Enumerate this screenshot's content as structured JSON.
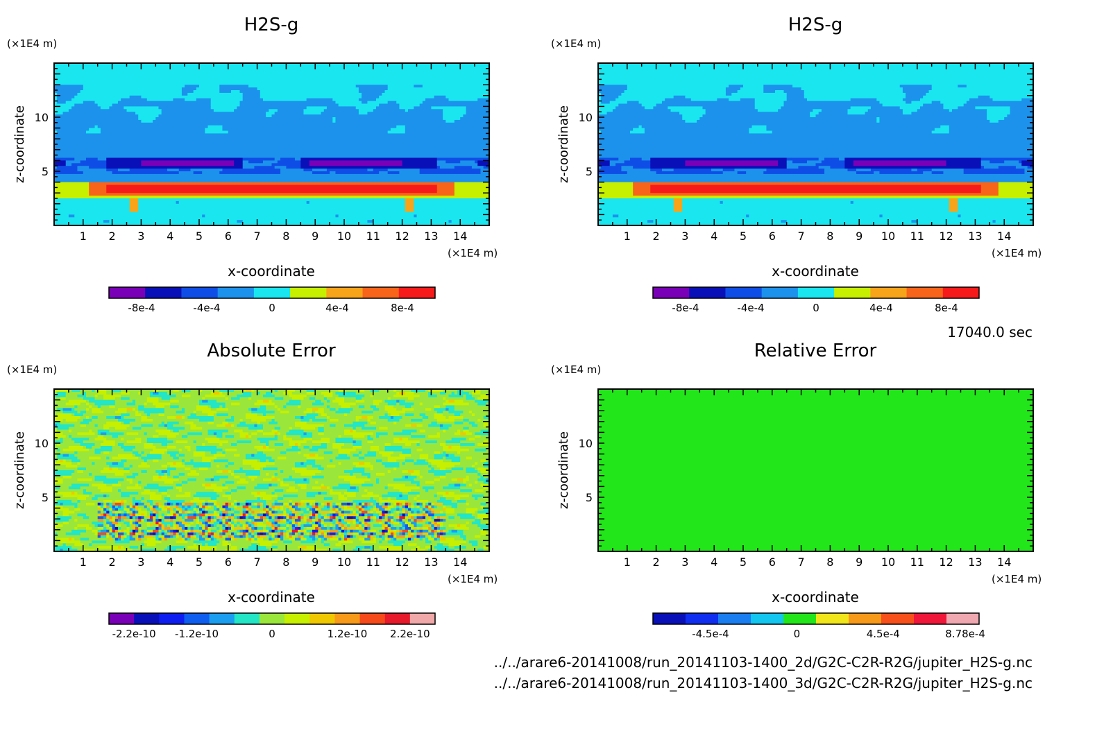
{
  "colors": {
    "field_levels": [
      "#7a00b8",
      "#0a10b8",
      "#0f4ee6",
      "#1c92ec",
      "#1ae6f0",
      "#c6f000",
      "#f7a41a",
      "#f7641a",
      "#f71a1a"
    ],
    "abs_error_levels": [
      "#7a00b8",
      "#0a10b8",
      "#0f1ef0",
      "#0f5ef0",
      "#1c9ef0",
      "#22e6c6",
      "#9ae63a",
      "#c6f000",
      "#f0c800",
      "#f79a1a",
      "#f74a1a",
      "#e61a2a",
      "#f0a8a8"
    ],
    "rel_error_levels": [
      "#0a10b8",
      "#0f2ef0",
      "#1a7ef0",
      "#12c6f0",
      "#22e61a",
      "#f0e61a",
      "#f79a1a",
      "#f7501a",
      "#f0163a",
      "#f0a8b0"
    ]
  },
  "timestamp": "17040.0 sec",
  "file_paths": [
    "../../arare6-20141008/run_20141103-1400_2d/G2C-C2R-R2G/jupiter_H2S-g.nc",
    "../../arare6-20141008/run_20141103-1400_3d/G2C-C2R-R2G/jupiter_H2S-g.nc"
  ],
  "panels": [
    {
      "title": "H2S-g",
      "xlabel": "x-coordinate",
      "ylabel": "z-coordinate",
      "x_unit": "(×1E4 m)",
      "y_unit": "(×1E4 m)",
      "xticks": [
        "1",
        "2",
        "3",
        "4",
        "5",
        "6",
        "7",
        "8",
        "9",
        "10",
        "11",
        "12",
        "13",
        "14"
      ],
      "yticks": [
        "5",
        "10"
      ],
      "colorbar_labels": [
        "-8e-4",
        "-4e-4",
        "0",
        "4e-4",
        "8e-4"
      ]
    },
    {
      "title": "H2S-g",
      "xlabel": "x-coordinate",
      "ylabel": "z-coordinate",
      "x_unit": "(×1E4 m)",
      "y_unit": "(×1E4 m)",
      "xticks": [
        "1",
        "2",
        "3",
        "4",
        "5",
        "6",
        "7",
        "8",
        "9",
        "10",
        "11",
        "12",
        "13",
        "14"
      ],
      "yticks": [
        "5",
        "10"
      ],
      "colorbar_labels": [
        "-8e-4",
        "-4e-4",
        "0",
        "4e-4",
        "8e-4"
      ]
    },
    {
      "title": "Absolute Error",
      "xlabel": "x-coordinate",
      "ylabel": "z-coordinate",
      "x_unit": "(×1E4 m)",
      "y_unit": "(×1E4 m)",
      "xticks": [
        "1",
        "2",
        "3",
        "4",
        "5",
        "6",
        "7",
        "8",
        "9",
        "10",
        "11",
        "12",
        "13",
        "14"
      ],
      "yticks": [
        "5",
        "10"
      ],
      "colorbar_labels": [
        "-2.2e-10",
        "-1.2e-10",
        "0",
        "1.2e-10",
        "2.2e-10"
      ]
    },
    {
      "title": "Relative Error",
      "xlabel": "x-coordinate",
      "ylabel": "z-coordinate",
      "x_unit": "(×1E4 m)",
      "y_unit": "(×1E4 m)",
      "xticks": [
        "1",
        "2",
        "3",
        "4",
        "5",
        "6",
        "7",
        "8",
        "9",
        "10",
        "11",
        "12",
        "13",
        "14"
      ],
      "yticks": [
        "5",
        "10"
      ],
      "colorbar_labels": [
        "-4.5e-4",
        "0",
        "4.5e-4",
        "8.78e-4"
      ]
    }
  ],
  "chart_data": [
    {
      "type": "heatmap",
      "title": "H2S-g",
      "xlabel": "x-coordinate",
      "ylabel": "z-coordinate",
      "xlim": [
        0,
        15
      ],
      "ylim": [
        0,
        15
      ],
      "colorbar": {
        "ticks": [
          -0.0008,
          -0.0004,
          0,
          0.0004,
          0.0008
        ],
        "range": [
          -0.001,
          0.001
        ],
        "levels": 9
      },
      "description_values": {
        "background": 0,
        "cyan_band_z": [
          6,
          12
        ],
        "blue_band_z": [
          5,
          6.5
        ],
        "purple_cores_x": [
          5.5,
          9.5
        ],
        "red_band_z": [
          2.5,
          4
        ],
        "red_band_peak": 0.0008
      }
    },
    {
      "type": "heatmap",
      "title": "H2S-g",
      "xlabel": "x-coordinate",
      "ylabel": "z-coordinate",
      "xlim": [
        0,
        15
      ],
      "ylim": [
        0,
        15
      ],
      "colorbar": {
        "ticks": [
          -0.0008,
          -0.0004,
          0,
          0.0004,
          0.0008
        ],
        "range": [
          -0.001,
          0.001
        ],
        "levels": 9
      }
    },
    {
      "type": "heatmap",
      "title": "Absolute Error",
      "xlabel": "x-coordinate",
      "ylabel": "z-coordinate",
      "xlim": [
        0,
        15
      ],
      "ylim": [
        0,
        15
      ],
      "colorbar": {
        "ticks": [
          -2.2e-10,
          -1.2e-10,
          0,
          1.2e-10,
          2.2e-10
        ],
        "range": [
          -2.6e-10,
          2.6e-10
        ],
        "levels": 13
      }
    },
    {
      "type": "heatmap",
      "title": "Relative Error",
      "xlabel": "x-coordinate",
      "ylabel": "z-coordinate",
      "xlim": [
        0,
        15
      ],
      "ylim": [
        0,
        15
      ],
      "colorbar": {
        "ticks": [
          -0.00045,
          0,
          0.00045,
          0.000878
        ],
        "range": [
          -0.00075,
          0.00095
        ],
        "levels": 10
      }
    }
  ]
}
